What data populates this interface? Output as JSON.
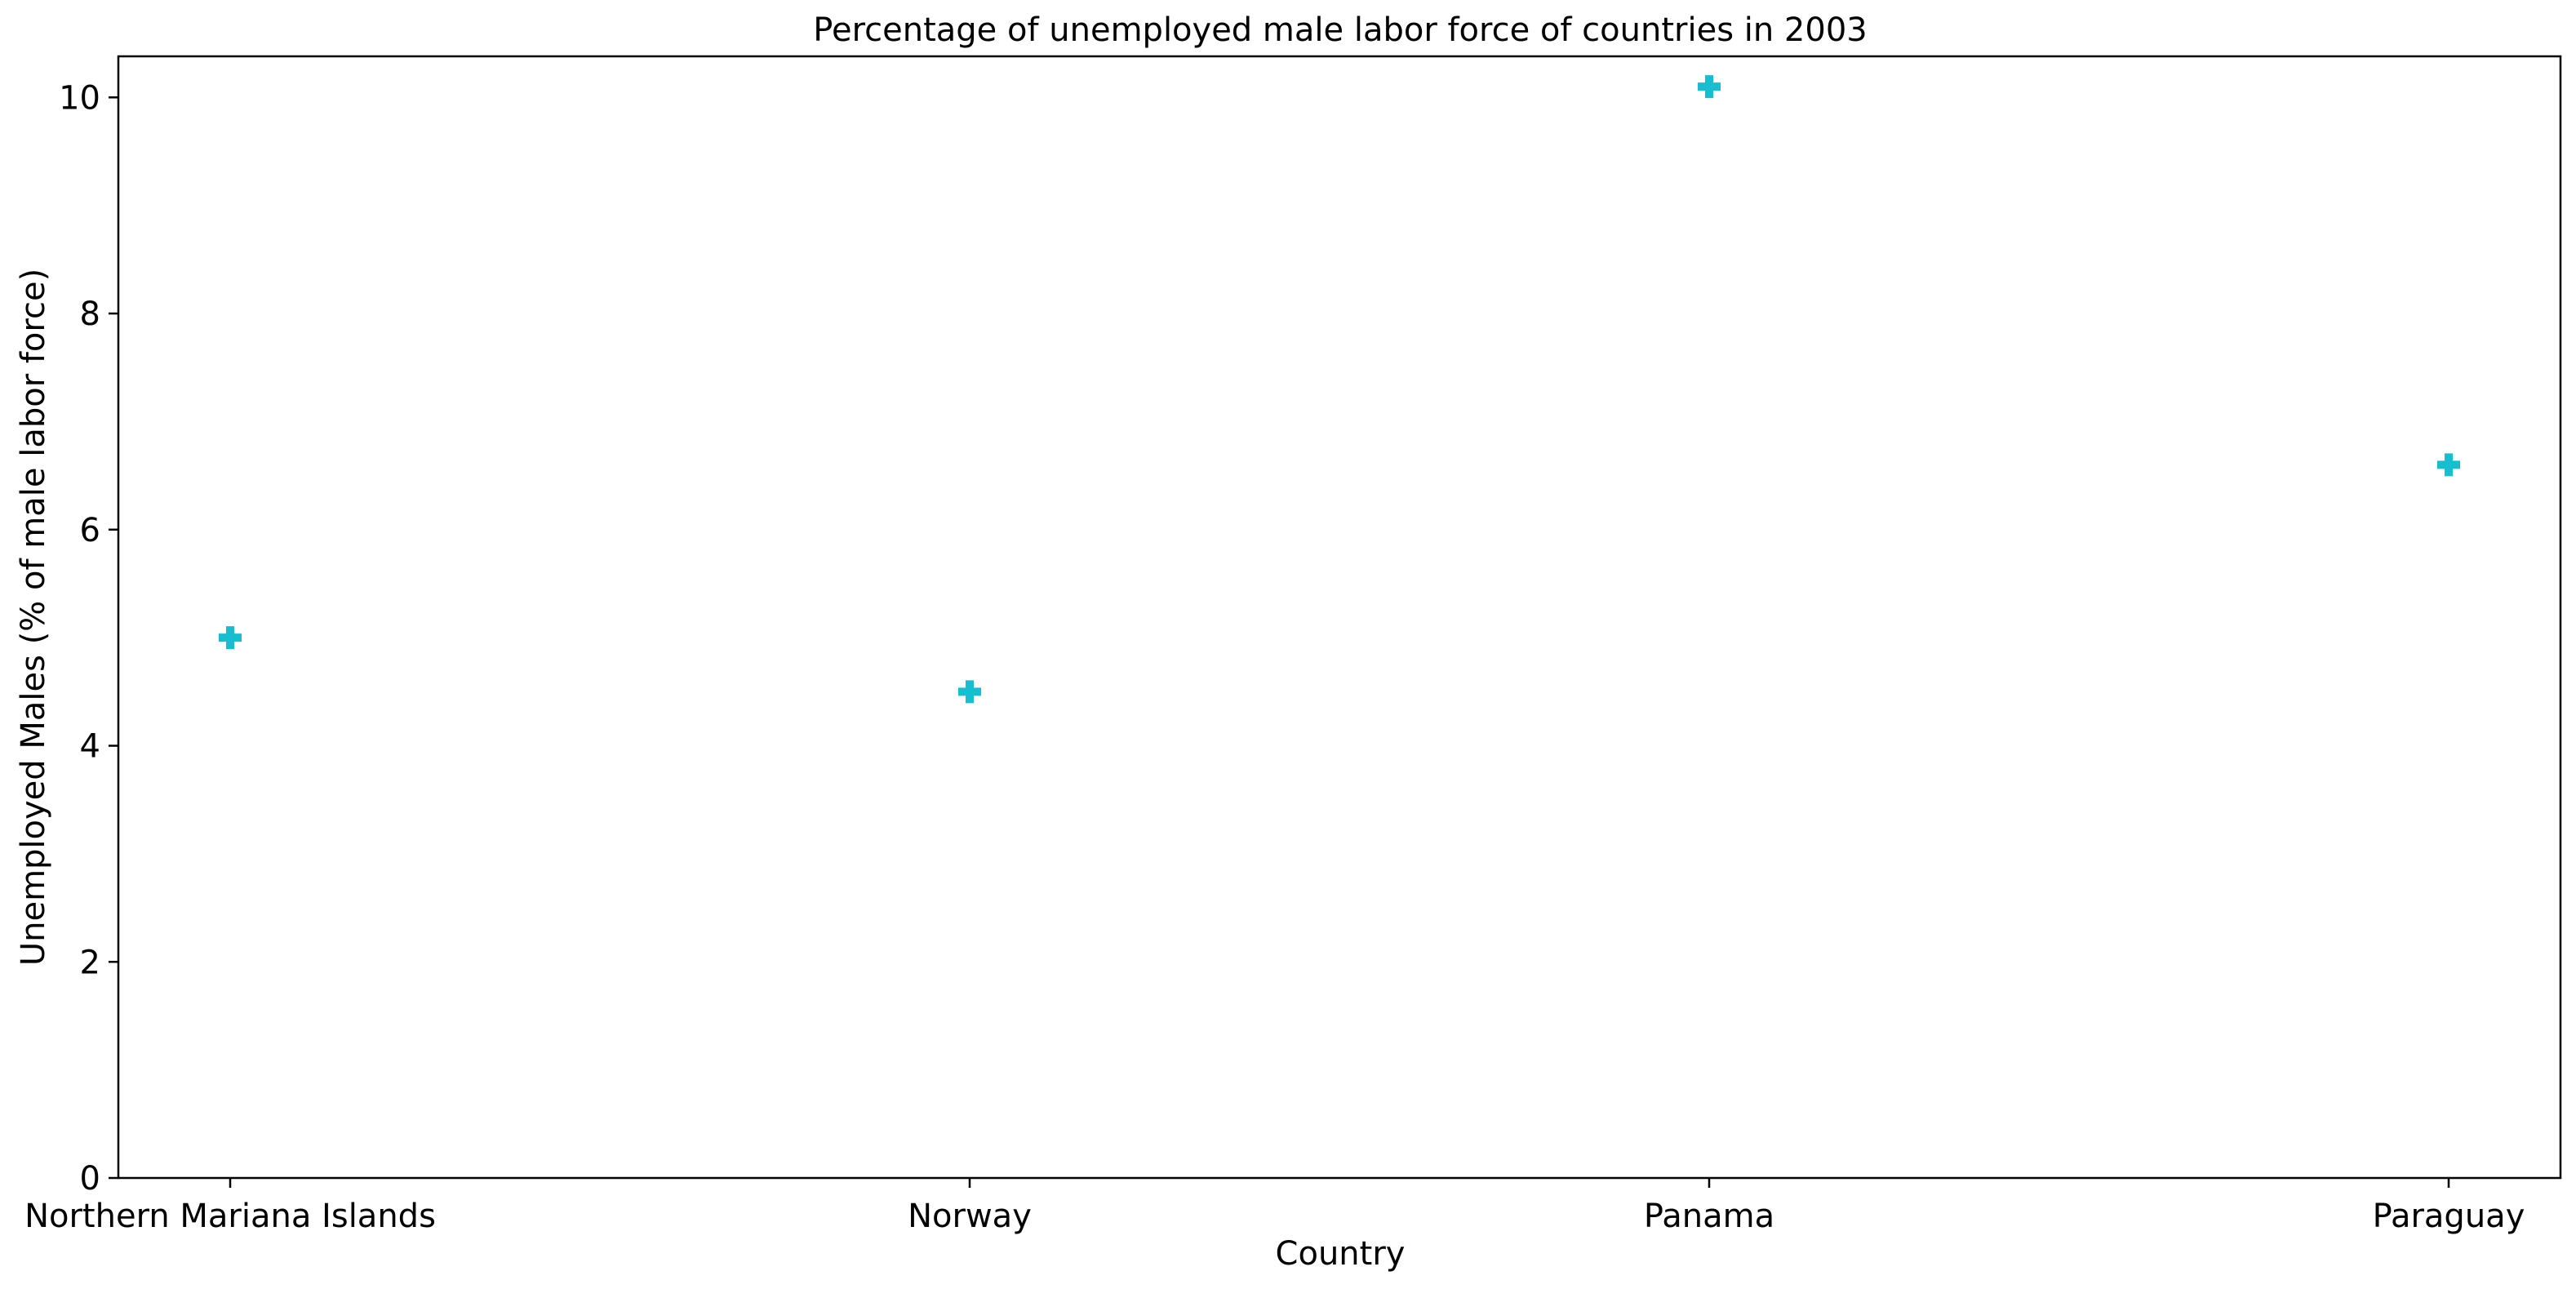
{
  "chart_data": {
    "type": "scatter",
    "title": "Percentage of unemployed male labor force of countries in 2003",
    "xlabel": "Country",
    "ylabel": "Unemployed Males (% of male labor force)",
    "categories": [
      "Northern Mariana Islands",
      "Norway",
      "Panama",
      "Paraguay"
    ],
    "series": [
      {
        "values": [
          5.0,
          4.5,
          10.1,
          6.6
        ],
        "color": "#17becf",
        "marker": "plus-filled"
      }
    ],
    "ylim": [
      0,
      10.38
    ],
    "yticks": [
      0,
      2,
      4,
      6,
      8,
      10
    ],
    "grid": false,
    "legend": "none"
  }
}
